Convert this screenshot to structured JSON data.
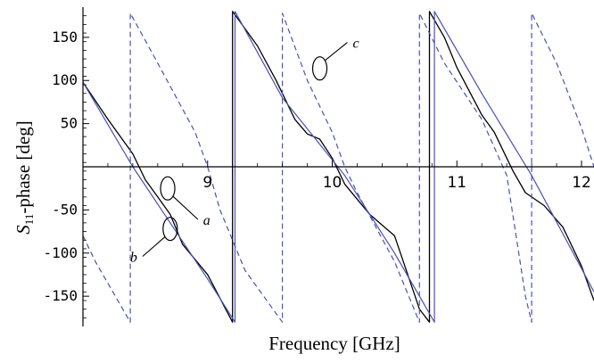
{
  "chart_data": {
    "type": "line",
    "xlabel": "Frequency [GHz]",
    "ylabel": "S11-phase [deg]",
    "ylabel_main": "S",
    "ylabel_sub": "11",
    "ylabel_rest": "-phase [deg]",
    "xlim": [
      8.0,
      12.1
    ],
    "ylim": [
      -185,
      185
    ],
    "x_ticks": [
      {
        "value": 9,
        "label": "9"
      },
      {
        "value": 10,
        "label": "10"
      },
      {
        "value": 11,
        "label": "11"
      },
      {
        "value": 12,
        "label": "12"
      }
    ],
    "y_ticks": [
      {
        "value": 150,
        "label": "150"
      },
      {
        "value": 100,
        "label": "100"
      },
      {
        "value": 50,
        "label": "50"
      },
      {
        "value": -50,
        "label": "-50"
      },
      {
        "value": -100,
        "label": "-100"
      },
      {
        "value": -150,
        "label": "-150"
      }
    ],
    "grid": false,
    "series": [
      {
        "key": "a",
        "style": "solid",
        "color": "#000000",
        "points": [
          [
            8.0,
            98
          ],
          [
            8.2,
            55
          ],
          [
            8.4,
            15
          ],
          [
            8.5,
            -15
          ],
          [
            8.6,
            -35
          ],
          [
            8.7,
            -55
          ],
          [
            8.8,
            -90
          ],
          [
            9.0,
            -125
          ],
          [
            9.2,
            -180
          ],
          [
            9.2,
            180
          ],
          [
            9.4,
            140
          ],
          [
            9.55,
            100
          ],
          [
            9.7,
            55
          ],
          [
            9.8,
            38
          ],
          [
            9.9,
            32
          ],
          [
            10.0,
            10
          ],
          [
            10.1,
            -20
          ],
          [
            10.3,
            -55
          ],
          [
            10.5,
            -80
          ],
          [
            10.7,
            -165
          ],
          [
            10.78,
            -180
          ],
          [
            10.78,
            180
          ],
          [
            10.9,
            150
          ],
          [
            11.0,
            115
          ],
          [
            11.2,
            60
          ],
          [
            11.3,
            40
          ],
          [
            11.45,
            -5
          ],
          [
            11.55,
            -30
          ],
          [
            11.7,
            -45
          ],
          [
            11.85,
            -70
          ],
          [
            12.0,
            -115
          ],
          [
            12.1,
            -155
          ]
        ]
      },
      {
        "key": "b",
        "style": "solid",
        "color": "#4a50b8",
        "points": [
          [
            8.0,
            98
          ],
          [
            8.4,
            0
          ],
          [
            9.0,
            -130
          ],
          [
            9.22,
            -180
          ],
          [
            9.22,
            180
          ],
          [
            9.6,
            80
          ],
          [
            10.1,
            -10
          ],
          [
            10.5,
            -100
          ],
          [
            10.82,
            -180
          ],
          [
            10.82,
            180
          ],
          [
            11.2,
            85
          ],
          [
            11.6,
            -10
          ],
          [
            12.1,
            -145
          ]
        ]
      },
      {
        "key": "c",
        "style": "dashed",
        "color": "#4a50b8",
        "points": [
          [
            8.0,
            -80
          ],
          [
            8.1,
            -110
          ],
          [
            8.3,
            -160
          ],
          [
            8.38,
            -180
          ],
          [
            8.38,
            178
          ],
          [
            8.6,
            120
          ],
          [
            8.9,
            40
          ],
          [
            9.0,
            0
          ],
          [
            9.1,
            -50
          ],
          [
            9.3,
            -120
          ],
          [
            9.6,
            -180
          ],
          [
            9.6,
            178
          ],
          [
            9.8,
            100
          ],
          [
            10.0,
            40
          ],
          [
            10.1,
            0
          ],
          [
            10.2,
            -30
          ],
          [
            10.5,
            -110
          ],
          [
            10.7,
            -180
          ],
          [
            10.7,
            178
          ],
          [
            10.9,
            120
          ],
          [
            11.2,
            55
          ],
          [
            11.4,
            -10
          ],
          [
            11.55,
            -150
          ],
          [
            11.6,
            -180
          ],
          [
            11.6,
            178
          ],
          [
            11.8,
            120
          ],
          [
            12.0,
            45
          ],
          [
            12.1,
            0
          ]
        ]
      }
    ],
    "annotations": [
      {
        "label": "a",
        "target": [
          8.68,
          -25
        ],
        "text_at": [
          8.95,
          -65
        ]
      },
      {
        "label": "b",
        "target": [
          8.7,
          -72
        ],
        "text_at": [
          8.45,
          -108
        ]
      },
      {
        "label": "c",
        "target": [
          9.9,
          114
        ],
        "text_at": [
          10.15,
          140
        ]
      }
    ]
  }
}
